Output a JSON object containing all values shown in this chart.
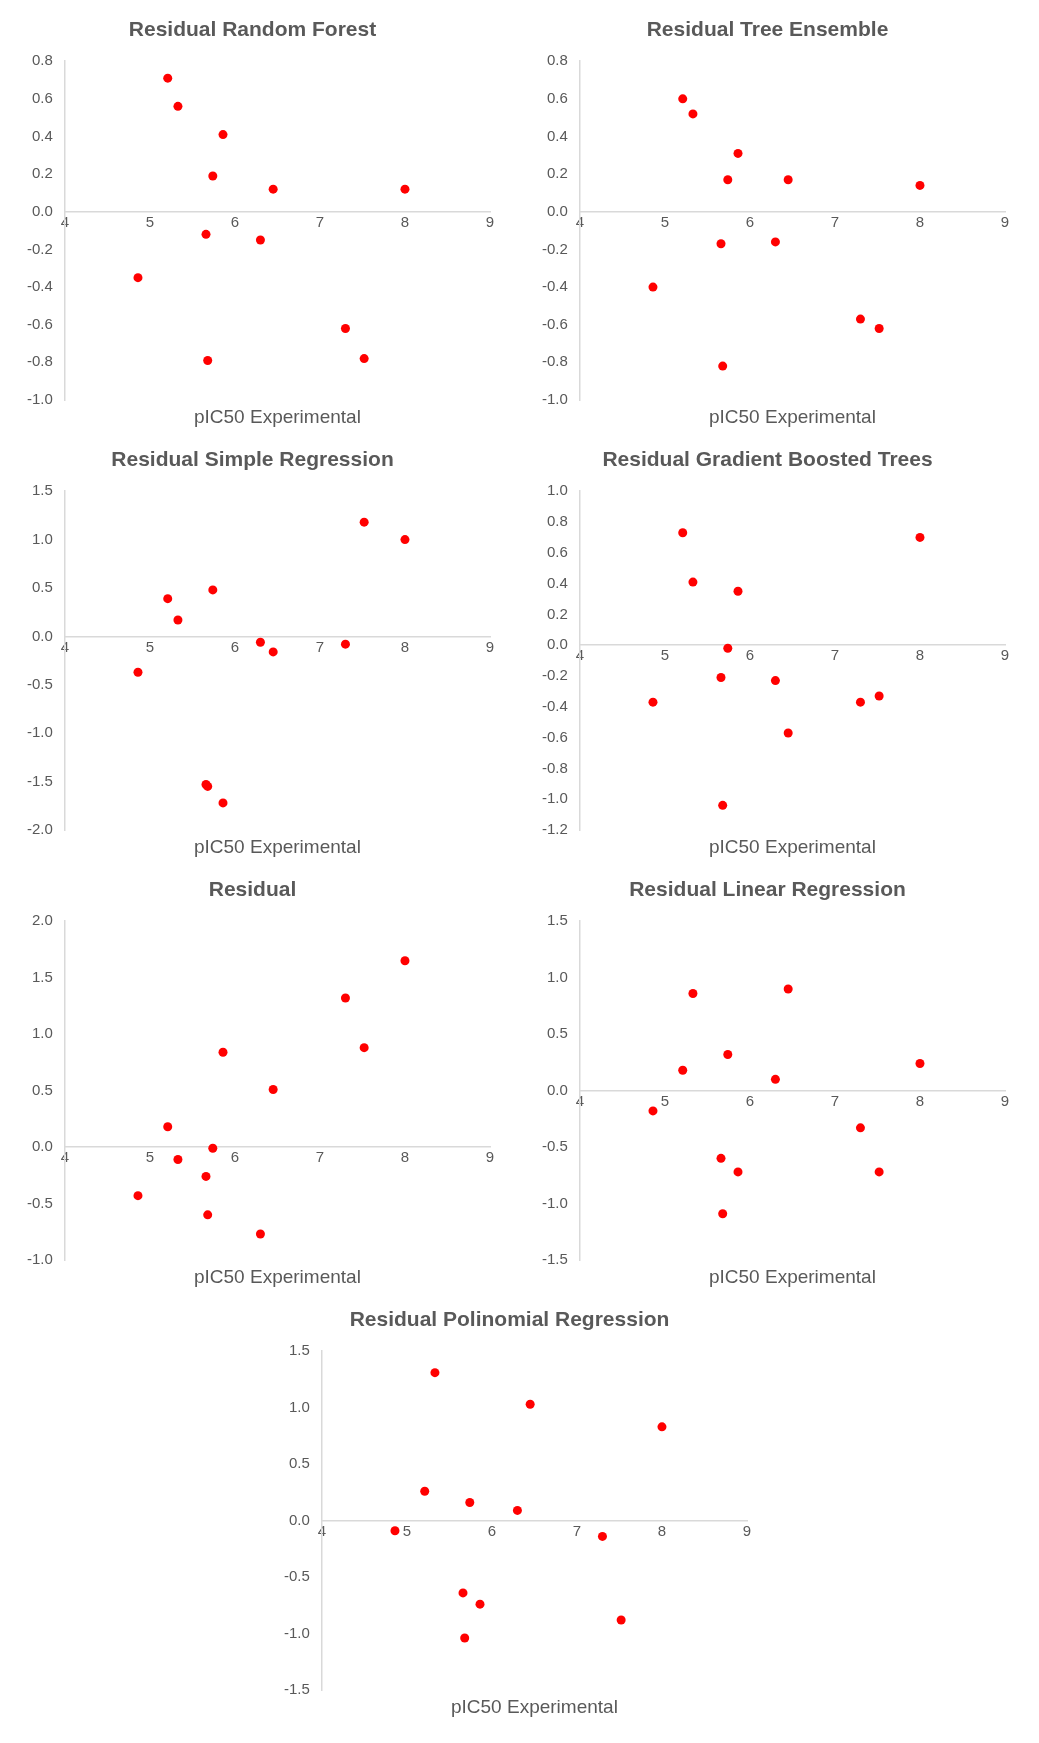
{
  "chart_data": [
    {
      "type": "scatter",
      "title": "Residual Random Forest",
      "xlabel": "pIC50 Experimental",
      "grid": false,
      "legend": false,
      "marker": "circle",
      "xlim": [
        4,
        9
      ],
      "xticks": [
        4,
        5,
        6,
        7,
        8,
        9
      ],
      "ylim": [
        -1,
        0.8
      ],
      "yticks": [
        {
          "value": 0.8,
          "label": "0.8"
        },
        {
          "value": 0.6,
          "label": "0.6"
        },
        {
          "value": 0.4,
          "label": "0.4"
        },
        {
          "value": 0.2,
          "label": "0.2"
        },
        {
          "value": 0,
          "label": "0.0"
        },
        {
          "value": -0.2,
          "label": "-0.2"
        },
        {
          "value": -0.4,
          "label": "-0.4"
        },
        {
          "value": -0.6,
          "label": "-0.6"
        },
        {
          "value": -0.8,
          "label": "-0.8"
        },
        {
          "value": -1,
          "label": "-1.0"
        }
      ],
      "series": [
        {
          "color": "#ff0000",
          "x": [
            5.21,
            5.33,
            5.86,
            5.74,
            6.45,
            8.0,
            5.66,
            6.3,
            4.86,
            7.3,
            5.68,
            7.52
          ],
          "values": [
            0.71,
            0.56,
            0.41,
            0.19,
            0.12,
            0.12,
            -0.12,
            -0.15,
            -0.35,
            -0.62,
            -0.79,
            -0.78
          ]
        }
      ]
    },
    {
      "type": "scatter",
      "title": "Residual Tree Ensemble",
      "xlabel": "pIC50 Experimental",
      "grid": false,
      "legend": false,
      "marker": "circle",
      "xlim": [
        4,
        9
      ],
      "xticks": [
        4,
        5,
        6,
        7,
        8,
        9
      ],
      "ylim": [
        -1,
        0.8
      ],
      "yticks": [
        {
          "value": 0.8,
          "label": "0.8"
        },
        {
          "value": 0.6,
          "label": "0.6"
        },
        {
          "value": 0.4,
          "label": "0.4"
        },
        {
          "value": 0.2,
          "label": "0.2"
        },
        {
          "value": 0,
          "label": "0.0"
        },
        {
          "value": -0.2,
          "label": "-0.2"
        },
        {
          "value": -0.4,
          "label": "-0.4"
        },
        {
          "value": -0.6,
          "label": "-0.6"
        },
        {
          "value": -0.8,
          "label": "-0.8"
        },
        {
          "value": -1,
          "label": "-1.0"
        }
      ],
      "series": [
        {
          "color": "#ff0000",
          "x": [
            5.21,
            5.33,
            5.86,
            5.74,
            6.45,
            8.0,
            5.66,
            6.3,
            4.86,
            7.3,
            7.52,
            5.68
          ],
          "values": [
            0.6,
            0.52,
            0.31,
            0.17,
            0.17,
            0.14,
            -0.17,
            -0.16,
            -0.4,
            -0.57,
            -0.62,
            -0.82
          ]
        }
      ]
    },
    {
      "type": "scatter",
      "title": "Residual Simple Regression",
      "xlabel": "pIC50 Experimental",
      "grid": false,
      "legend": false,
      "marker": "circle",
      "xlim": [
        4,
        9
      ],
      "xticks": [
        4,
        5,
        6,
        7,
        8,
        9
      ],
      "ylim": [
        -2,
        1.5
      ],
      "yticks": [
        1.5,
        {
          "value": 1,
          "label": "1.0"
        },
        0.5,
        {
          "value": 0,
          "label": "0.0"
        },
        -0.5,
        {
          "value": -1,
          "label": "-1.0"
        },
        -1.5,
        {
          "value": -2,
          "label": "-2.0"
        }
      ],
      "series": [
        {
          "color": "#ff0000",
          "x": [
            7.52,
            8.0,
            5.74,
            5.21,
            5.33,
            6.3,
            6.45,
            7.3,
            4.86,
            5.66,
            5.68,
            5.86
          ],
          "values": [
            1.18,
            1.0,
            0.48,
            0.39,
            0.17,
            -0.06,
            -0.16,
            -0.08,
            -0.37,
            -1.53,
            -1.55,
            -1.72
          ]
        }
      ]
    },
    {
      "type": "scatter",
      "title": "Residual Gradient Boosted Trees",
      "xlabel": "pIC50 Experimental",
      "grid": false,
      "legend": false,
      "marker": "circle",
      "xlim": [
        4,
        9
      ],
      "xticks": [
        4,
        5,
        6,
        7,
        8,
        9
      ],
      "ylim": [
        -1.2,
        1
      ],
      "yticks": [
        {
          "value": 1,
          "label": "1.0"
        },
        {
          "value": 0.8,
          "label": "0.8"
        },
        {
          "value": 0.6,
          "label": "0.6"
        },
        {
          "value": 0.4,
          "label": "0.4"
        },
        {
          "value": 0.2,
          "label": "0.2"
        },
        {
          "value": 0,
          "label": "0.0"
        },
        {
          "value": -0.2,
          "label": "-0.2"
        },
        {
          "value": -0.4,
          "label": "-0.4"
        },
        {
          "value": -0.6,
          "label": "-0.6"
        },
        {
          "value": -0.8,
          "label": "-0.8"
        },
        {
          "value": -1,
          "label": "-1.0"
        },
        {
          "value": -1.2,
          "label": "-1.2"
        }
      ],
      "series": [
        {
          "color": "#ff0000",
          "x": [
            5.21,
            8.0,
            5.33,
            5.86,
            5.74,
            5.66,
            6.3,
            4.86,
            7.3,
            7.52,
            6.45,
            5.68
          ],
          "values": [
            0.73,
            0.7,
            0.41,
            0.35,
            -0.02,
            -0.21,
            -0.23,
            -0.37,
            -0.37,
            -0.33,
            -0.57,
            -1.04
          ]
        }
      ]
    },
    {
      "type": "scatter",
      "title": "Residual",
      "xlabel": "pIC50 Experimental",
      "grid": false,
      "legend": false,
      "marker": "circle",
      "xlim": [
        4,
        9
      ],
      "xticks": [
        4,
        5,
        6,
        7,
        8,
        9
      ],
      "ylim": [
        -1,
        2
      ],
      "yticks": [
        {
          "value": 2,
          "label": "2.0"
        },
        1.5,
        {
          "value": 1,
          "label": "1.0"
        },
        0.5,
        {
          "value": 0,
          "label": "0.0"
        },
        -0.5,
        {
          "value": -1,
          "label": "-1.0"
        }
      ],
      "series": [
        {
          "color": "#ff0000",
          "x": [
            8.0,
            7.3,
            7.52,
            5.86,
            6.45,
            5.21,
            5.33,
            5.74,
            5.66,
            4.86,
            5.68,
            6.3
          ],
          "values": [
            1.65,
            1.32,
            0.88,
            0.84,
            0.51,
            0.18,
            -0.11,
            -0.01,
            -0.26,
            -0.43,
            -0.6,
            -0.77
          ]
        }
      ]
    },
    {
      "type": "scatter",
      "title": "Residual Linear Regression",
      "xlabel": "pIC50 Experimental",
      "grid": false,
      "legend": false,
      "marker": "circle",
      "xlim": [
        4,
        9
      ],
      "xticks": [
        4,
        5,
        6,
        7,
        8,
        9
      ],
      "ylim": [
        -1.5,
        1.5
      ],
      "yticks": [
        1.5,
        {
          "value": 1,
          "label": "1.0"
        },
        0.5,
        {
          "value": 0,
          "label": "0.0"
        },
        -0.5,
        {
          "value": -1,
          "label": "-1.0"
        },
        -1.5
      ],
      "series": [
        {
          "color": "#ff0000",
          "x": [
            5.33,
            6.45,
            5.74,
            5.21,
            6.3,
            8.0,
            4.86,
            7.3,
            5.66,
            5.86,
            7.52,
            5.68
          ],
          "values": [
            0.86,
            0.9,
            0.32,
            0.18,
            0.1,
            0.24,
            -0.18,
            -0.33,
            -0.6,
            -0.72,
            -0.72,
            -1.09
          ]
        }
      ]
    },
    {
      "type": "scatter",
      "title": "Residual Polinomial Regression",
      "xlabel": "pIC50 Experimental",
      "grid": false,
      "legend": false,
      "marker": "circle",
      "xlim": [
        4,
        9
      ],
      "xticks": [
        4,
        5,
        6,
        7,
        8,
        9
      ],
      "ylim": [
        -1.5,
        1.5
      ],
      "yticks": [
        1.5,
        {
          "value": 1,
          "label": "1.0"
        },
        0.5,
        {
          "value": 0,
          "label": "0.0"
        },
        -0.5,
        {
          "value": -1,
          "label": "-1.0"
        },
        -1.5
      ],
      "series": [
        {
          "color": "#ff0000",
          "x": [
            5.33,
            6.45,
            8.0,
            5.21,
            5.74,
            6.3,
            4.86,
            7.3,
            5.66,
            5.86,
            7.52,
            5.68
          ],
          "values": [
            1.31,
            1.03,
            0.83,
            0.26,
            0.16,
            0.09,
            -0.09,
            -0.14,
            -0.64,
            -0.74,
            -0.88,
            -1.04
          ]
        }
      ]
    }
  ]
}
